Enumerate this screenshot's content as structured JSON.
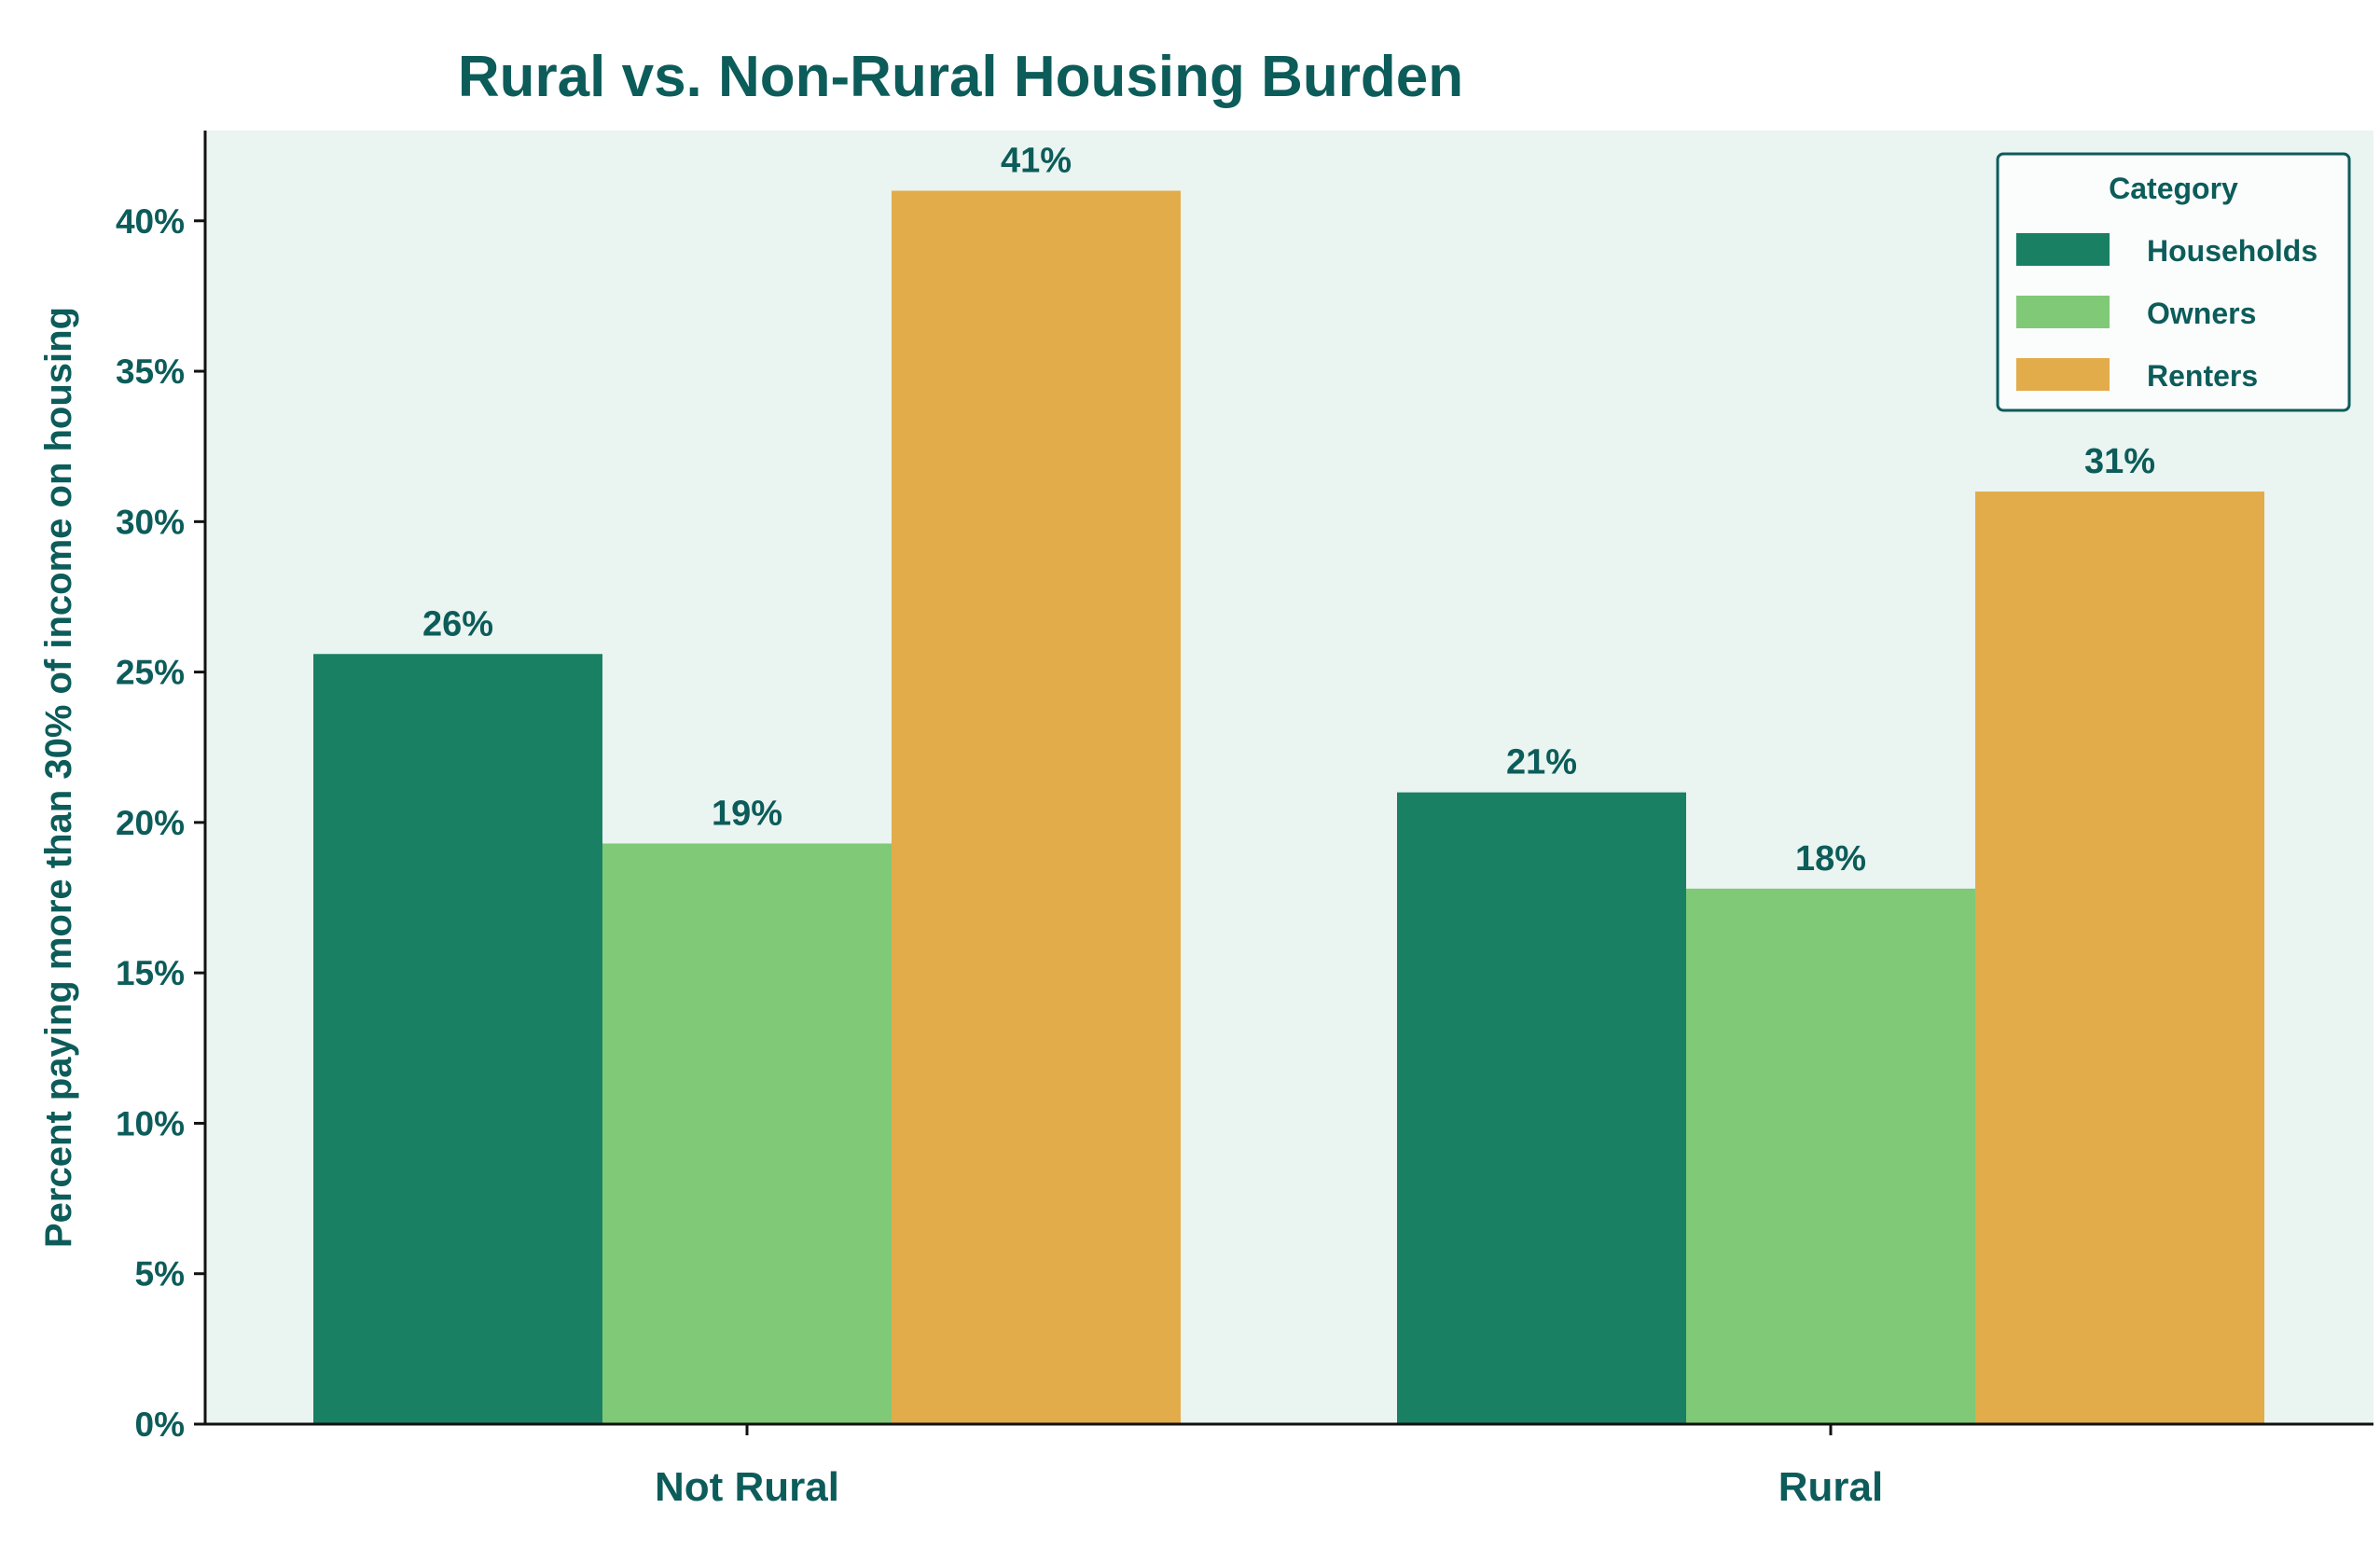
{
  "chart_data": {
    "type": "bar",
    "title": "Rural vs. Non-Rural Housing Burden",
    "xlabel": "",
    "ylabel": "Percent paying more than 30% of income on housing",
    "categories": [
      "Not Rural",
      "Rural"
    ],
    "series": [
      {
        "name": "Households",
        "values": [
          25.6,
          21.0
        ],
        "labels": [
          "26%",
          "21%"
        ],
        "color": "#1a8063"
      },
      {
        "name": "Owners",
        "values": [
          19.3,
          17.8
        ],
        "labels": [
          "19%",
          "18%"
        ],
        "color": "#80c977"
      },
      {
        "name": "Renters",
        "values": [
          41.0,
          31.0
        ],
        "labels": [
          "41%",
          "31%"
        ],
        "color": "#e2ac4b"
      }
    ],
    "ylim": [
      0,
      43
    ],
    "yticks": [
      0,
      5,
      10,
      15,
      20,
      25,
      30,
      35,
      40
    ],
    "ytick_labels": [
      "0%",
      "5%",
      "10%",
      "15%",
      "20%",
      "25%",
      "30%",
      "35%",
      "40%"
    ],
    "legend": {
      "title": "Category",
      "position": "top-right"
    },
    "grid": false,
    "colors": {
      "text": "#0c5c5a",
      "plot_background": "#eaf4f0",
      "axis": "#111111"
    }
  }
}
